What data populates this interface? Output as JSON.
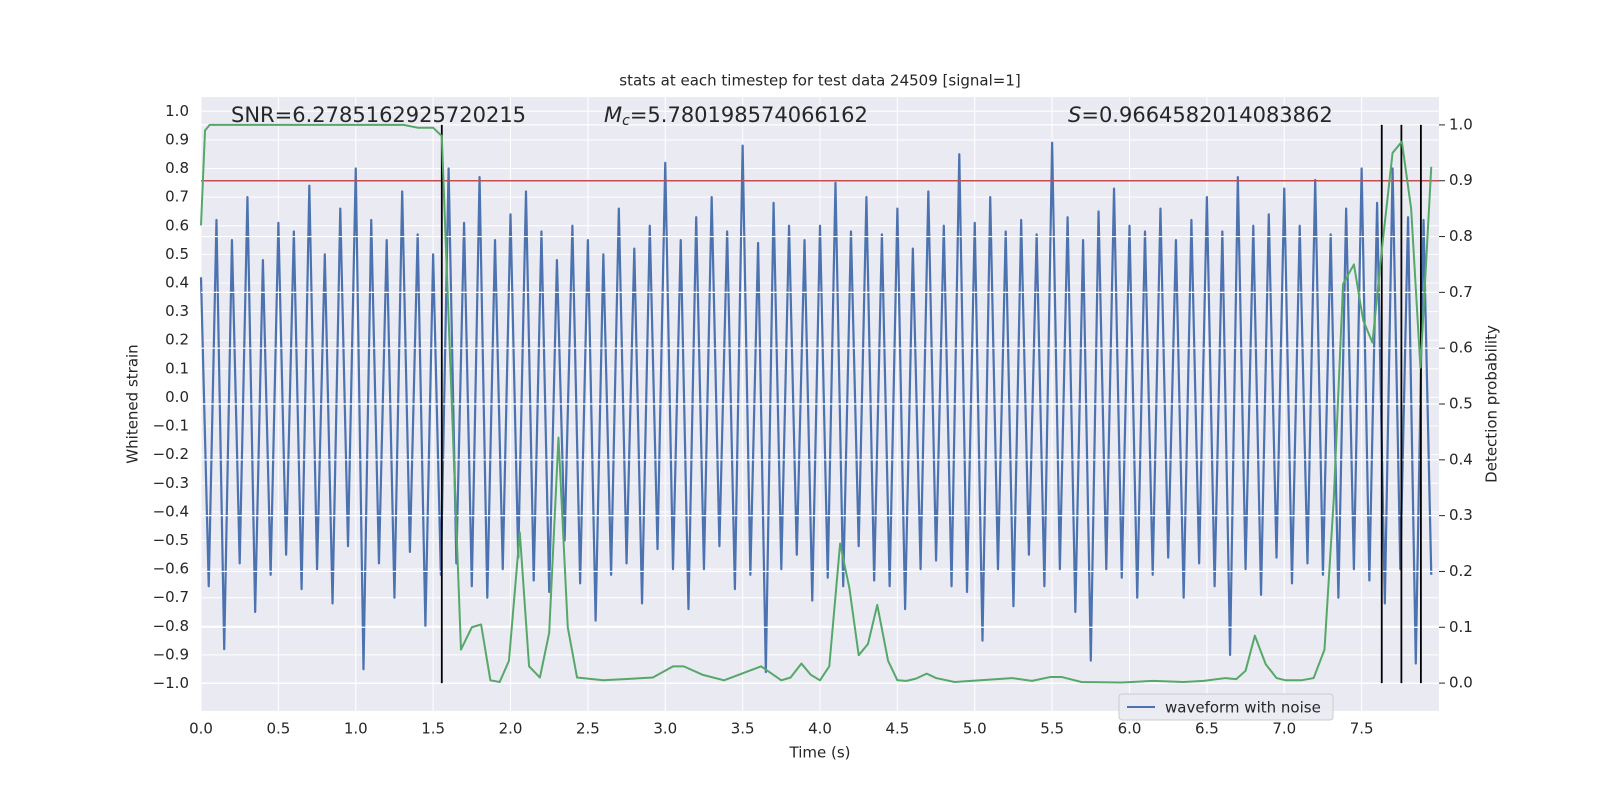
{
  "chart_data": {
    "type": "line",
    "title": "stats at each timestep for test data 24509 [signal=1]",
    "xlabel": "Time (s)",
    "ylabel": "Whitened strain",
    "y2label": "Detection probability",
    "xlim": [
      0,
      8.0
    ],
    "xticks": [
      {
        "value": 0,
        "label": "0.0"
      },
      0.5,
      {
        "value": 1,
        "label": "1.0"
      },
      1.5,
      {
        "value": 2,
        "label": "2.0"
      },
      2.5,
      {
        "value": 3,
        "label": "3.0"
      },
      3.5,
      {
        "value": 4,
        "label": "4.0"
      },
      4.5,
      {
        "value": 5,
        "label": "5.0"
      },
      5.5,
      {
        "value": 6,
        "label": "6.0"
      },
      6.5,
      {
        "value": 7,
        "label": "7.0"
      },
      7.5
    ],
    "ylim": [
      -1.096,
      1.05
    ],
    "yticks": [
      {
        "value": -1,
        "label": "−1.0"
      },
      {
        "value": -0.9,
        "label": "−0.9"
      },
      {
        "value": -0.8,
        "label": "−0.8"
      },
      {
        "value": -0.7,
        "label": "−0.7"
      },
      {
        "value": -0.6,
        "label": "−0.6"
      },
      {
        "value": -0.5,
        "label": "−0.5"
      },
      {
        "value": -0.4,
        "label": "−0.4"
      },
      {
        "value": -0.3,
        "label": "−0.3"
      },
      {
        "value": -0.2,
        "label": "−0.2"
      },
      {
        "value": -0.1,
        "label": "−0.1"
      },
      {
        "value": 0,
        "label": "0.0"
      },
      0.1,
      0.2,
      0.3,
      0.4,
      0.5,
      0.6,
      0.7,
      0.8,
      0.9,
      {
        "value": 1,
        "label": "1.0"
      }
    ],
    "y2lim": [
      -0.05,
      1.05
    ],
    "y2ticks": [
      {
        "value": 0,
        "label": "0.0"
      },
      0.1,
      0.2,
      0.3,
      0.4,
      0.5,
      0.6,
      0.7,
      0.8,
      0.9,
      {
        "value": 1,
        "label": "1.0"
      }
    ],
    "grid": true,
    "legend": "lower right",
    "annotations": [
      {
        "text": "SNR=6.2785162925720215"
      },
      {
        "symbol": "M",
        "subscript": "c",
        "text": "=5.780198574066162"
      },
      {
        "symbol": "S",
        "text": "=0.9664582014083862"
      }
    ],
    "series": [
      {
        "name": "waveform with noise",
        "color": "#4c72b0",
        "x": [
          0,
          0.05,
          0.1,
          0.15,
          0.2,
          0.25,
          0.3,
          0.35,
          0.4,
          0.45,
          0.5,
          0.55,
          0.6,
          0.65,
          0.7,
          0.75,
          0.8,
          0.85,
          0.9,
          0.95,
          1,
          1.05,
          1.1,
          1.15,
          1.2,
          1.25,
          1.3,
          1.35,
          1.4,
          1.45,
          1.5,
          1.55,
          1.6,
          1.65,
          1.7,
          1.75,
          1.8,
          1.85,
          1.9,
          1.95,
          2,
          2.05,
          2.1,
          2.15,
          2.2,
          2.25,
          2.3,
          2.35,
          2.4,
          2.45,
          2.5,
          2.55,
          2.6,
          2.65,
          2.7,
          2.75,
          2.8,
          2.85,
          2.9,
          2.95,
          3,
          3.05,
          3.1,
          3.15,
          3.2,
          3.25,
          3.3,
          3.35,
          3.4,
          3.45,
          3.5,
          3.55,
          3.6,
          3.65,
          3.7,
          3.75,
          3.8,
          3.85,
          3.9,
          3.95,
          4,
          4.05,
          4.1,
          4.15,
          4.2,
          4.25,
          4.3,
          4.35,
          4.4,
          4.45,
          4.5,
          4.55,
          4.6,
          4.65,
          4.7,
          4.75,
          4.8,
          4.85,
          4.9,
          4.95,
          5,
          5.05,
          5.1,
          5.15,
          5.2,
          5.25,
          5.3,
          5.35,
          5.4,
          5.45,
          5.5,
          5.55,
          5.6,
          5.65,
          5.7,
          5.75,
          5.8,
          5.85,
          5.9,
          5.95,
          6,
          6.05,
          6.1,
          6.15,
          6.2,
          6.25,
          6.3,
          6.35,
          6.4,
          6.45,
          6.5,
          6.55,
          6.6,
          6.65,
          6.7,
          6.75,
          6.8,
          6.85,
          6.9,
          6.95,
          7,
          7.05,
          7.1,
          7.15,
          7.2,
          7.25,
          7.3,
          7.35,
          7.4,
          7.45,
          7.5,
          7.55,
          7.6,
          7.65,
          7.7,
          7.75,
          7.8,
          7.85,
          7.9,
          7.95
        ],
        "values": [
          0.42,
          -0.66,
          0.62,
          -0.88,
          0.55,
          -0.58,
          0.7,
          -0.75,
          0.48,
          -0.62,
          0.61,
          -0.55,
          0.58,
          -0.67,
          0.74,
          -0.6,
          0.5,
          -0.72,
          0.66,
          -0.52,
          0.8,
          -0.95,
          0.62,
          -0.58,
          0.55,
          -0.7,
          0.72,
          -0.54,
          0.57,
          -0.8,
          0.5,
          -0.62,
          0.8,
          -0.58,
          0.61,
          -0.66,
          0.77,
          -0.7,
          0.55,
          -0.6,
          0.64,
          -0.56,
          0.72,
          -0.64,
          0.58,
          -0.68,
          0.48,
          -0.5,
          0.6,
          -0.65,
          0.55,
          -0.78,
          0.5,
          -0.62,
          0.66,
          -0.58,
          0.52,
          -0.72,
          0.6,
          -0.53,
          0.82,
          -0.6,
          0.55,
          -0.74,
          0.63,
          -0.6,
          0.7,
          -0.52,
          0.58,
          -0.67,
          0.88,
          -0.62,
          0.54,
          -0.96,
          0.68,
          -0.6,
          0.6,
          -0.55,
          0.55,
          -0.71,
          0.6,
          -0.63,
          0.75,
          -0.66,
          0.58,
          -0.52,
          0.7,
          -0.64,
          0.57,
          -0.66,
          0.66,
          -0.74,
          0.52,
          -0.6,
          0.72,
          -0.57,
          0.6,
          -0.66,
          0.85,
          -0.68,
          0.61,
          -0.85,
          0.7,
          -0.6,
          0.58,
          -0.73,
          0.62,
          -0.55,
          0.57,
          -0.66,
          0.89,
          -0.6,
          0.63,
          -0.75,
          0.55,
          -0.92,
          0.65,
          -0.6,
          0.73,
          -0.63,
          0.6,
          -0.7,
          0.58,
          -0.62,
          0.66,
          -0.56,
          0.55,
          -0.7,
          0.62,
          -0.58,
          0.7,
          -0.66,
          0.58,
          -0.9,
          0.77,
          -0.6,
          0.6,
          -0.69,
          0.64,
          -0.56,
          0.73,
          -0.65,
          0.6,
          -0.58,
          0.76,
          -0.62,
          0.57,
          -0.7,
          0.66,
          -0.6,
          0.8,
          -0.64,
          0.68,
          -0.72,
          0.8,
          -0.6,
          0.63,
          -0.93,
          0.62,
          -0.62
        ]
      }
    ],
    "probability": {
      "color": "#55a868",
      "axis": "y2",
      "x": [
        0,
        0.026,
        0.056,
        0.5,
        1.0,
        1.31,
        1.4,
        1.5,
        1.556,
        1.68,
        1.75,
        1.81,
        1.87,
        1.93,
        1.99,
        2.06,
        2.12,
        2.19,
        2.25,
        2.31,
        2.37,
        2.43,
        2.6,
        2.92,
        3.05,
        3.12,
        3.24,
        3.38,
        3.62,
        3.75,
        3.81,
        3.88,
        3.94,
        4.0,
        4.06,
        4.13,
        4.19,
        4.25,
        4.31,
        4.37,
        4.44,
        4.5,
        4.56,
        4.62,
        4.69,
        4.75,
        4.87,
        5.24,
        5.37,
        5.49,
        5.56,
        5.69,
        5.95,
        6.15,
        6.35,
        6.48,
        6.62,
        6.69,
        6.75,
        6.81,
        6.88,
        6.95,
        7.01,
        7.11,
        7.19,
        7.26,
        7.32,
        7.38,
        7.45,
        7.51,
        7.57,
        7.63,
        7.7,
        7.76,
        7.82,
        7.88,
        7.95
      ],
      "values": [
        0.82,
        0.99,
        1.0,
        1.0,
        1.0,
        1.0,
        0.995,
        0.995,
        0.98,
        0.06,
        0.1,
        0.105,
        0.005,
        0.002,
        0.04,
        0.27,
        0.03,
        0.01,
        0.09,
        0.44,
        0.1,
        0.01,
        0.005,
        0.01,
        0.03,
        0.03,
        0.015,
        0.005,
        0.03,
        0.005,
        0.01,
        0.035,
        0.015,
        0.005,
        0.03,
        0.25,
        0.17,
        0.05,
        0.07,
        0.14,
        0.04,
        0.005,
        0.004,
        0.008,
        0.017,
        0.009,
        0.002,
        0.009,
        0.004,
        0.011,
        0.011,
        0.002,
        0.001,
        0.004,
        0.002,
        0.004,
        0.009,
        0.007,
        0.022,
        0.085,
        0.034,
        0.009,
        0.005,
        0.005,
        0.009,
        0.06,
        0.33,
        0.715,
        0.75,
        0.65,
        0.61,
        0.775,
        0.95,
        0.97,
        0.85,
        0.565,
        0.925
      ]
    },
    "hline": {
      "value": 0.9,
      "axis": "y2",
      "color": "#c44e52"
    },
    "vlines": {
      "x": [
        1.556,
        7.63,
        7.757,
        7.883
      ],
      "ymin": 0,
      "ymax": 1,
      "axis": "y2",
      "color": "#000000"
    }
  }
}
